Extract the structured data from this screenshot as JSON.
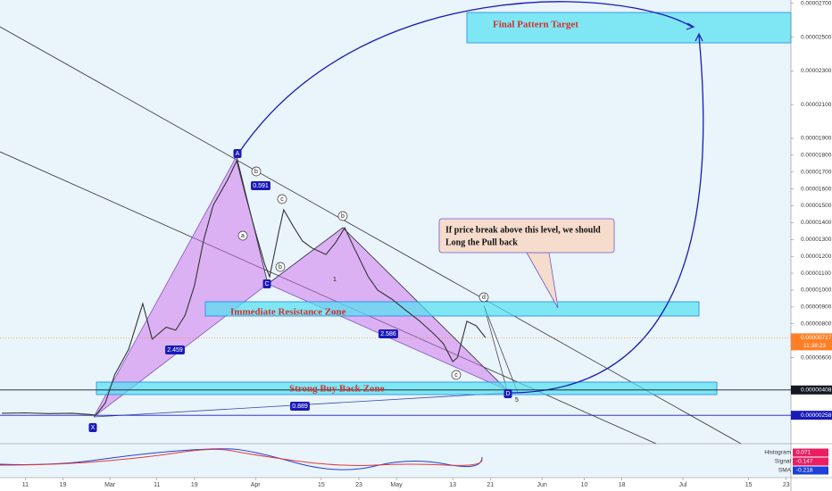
{
  "chart_data": {
    "type": "line",
    "color": "#333333",
    "x": [
      5,
      10,
      15,
      20,
      24,
      25,
      27,
      29,
      32,
      35,
      37,
      40,
      42,
      44,
      46,
      48,
      50,
      53,
      55,
      57,
      59,
      61,
      62,
      64,
      65,
      67,
      69,
      71,
      74,
      76,
      78,
      80,
      83,
      85,
      88,
      91,
      94,
      97,
      99,
      101,
      102,
      104,
      106,
      108
    ],
    "values": [
      2.7e-06,
      2.72e-06,
      2.68e-06,
      2.7e-06,
      2.62e-06,
      2.58e-06,
      3.3e-06,
      4.97e-06,
      6.5e-06,
      9.2e-06,
      7.09e-06,
      7.8e-06,
      7.62e-06,
      8.5e-06,
      1.026e-05,
      1.3e-05,
      1.503e-05,
      1.65e-05,
      1.767e-05,
      1.55e-05,
      1.344e-05,
      1.15e-05,
      1.079e-05,
      1.35e-05,
      1.476e-05,
      1.38e-05,
      1.291e-05,
      1.25e-05,
      1.211e-05,
      1.28e-05,
      1.37e-05,
      1.25e-05,
      1.079e-05,
      1e-05,
      9.47e-06,
      8.8e-06,
      8.15e-06,
      7.4e-06,
      6.82e-06,
      5.76e-06,
      6e-06,
      8.15e-06,
      7.88e-06,
      7.17e-06
    ],
    "xlim": [
      4.6,
      173
    ],
    "xticks": [
      {
        "value": 10,
        "label": "11"
      },
      {
        "value": 18,
        "label": "19"
      },
      {
        "value": 28,
        "label": "Mar"
      },
      {
        "value": 38,
        "label": "11"
      },
      {
        "value": 46,
        "label": "19"
      },
      {
        "value": 59,
        "label": "Apr"
      },
      {
        "value": 73,
        "label": "15"
      },
      {
        "value": 81,
        "label": "23"
      },
      {
        "value": 89,
        "label": "May"
      },
      {
        "value": 101,
        "label": "13"
      },
      {
        "value": 109,
        "label": "21"
      },
      {
        "value": 120,
        "label": "Jun"
      },
      {
        "value": 129,
        "label": "10"
      },
      {
        "value": 137,
        "label": "18"
      },
      {
        "value": 150,
        "label": "Jul"
      },
      {
        "value": 164,
        "label": "15"
      },
      {
        "value": 172,
        "label": "23"
      }
    ],
    "ylim": [
      1e-06,
      2.72e-05
    ],
    "yticks": [
      {
        "value": 2.7e-05,
        "label": "0.00002700"
      },
      {
        "value": 2.5e-05,
        "label": "0.00002500"
      },
      {
        "value": 2.3e-05,
        "label": "0.00002300"
      },
      {
        "value": 2.1e-05,
        "label": "0.00002100"
      },
      {
        "value": 1.9e-05,
        "label": "0.00001900"
      },
      {
        "value": 1.8e-05,
        "label": "0.00001800"
      },
      {
        "value": 1.7e-05,
        "label": "0.00001700"
      },
      {
        "value": 1.6e-05,
        "label": "0.00001600"
      },
      {
        "value": 1.5e-05,
        "label": "0.00001500"
      },
      {
        "value": 1.4e-05,
        "label": "0.00001400"
      },
      {
        "value": 1.3e-05,
        "label": "0.00001300"
      },
      {
        "value": 1.2e-05,
        "label": "0.00001200"
      },
      {
        "value": 1.1e-05,
        "label": "0.00001100"
      },
      {
        "value": 1e-05,
        "label": "0.00001000"
      },
      {
        "value": 9e-06,
        "label": "0.00000900"
      },
      {
        "value": 8e-06,
        "label": "0.00000800"
      },
      {
        "value": 6e-06,
        "label": "0.00000600"
      }
    ],
    "price_lines": [
      {
        "value": 4.08e-06,
        "label": "0.00000408",
        "color": "#131722"
      },
      {
        "value": 2.58e-06,
        "label": "0.00000258",
        "color": "#1a1ab8"
      }
    ],
    "last_price": {
      "value": 7.17e-06,
      "label": "0.00000717",
      "time": "11:38:23",
      "color": "#ff7f27"
    },
    "target_label": "Final Pattern Target",
    "callout": [
      "If price break above this level, we should",
      "Long the Pull back"
    ],
    "zones": [
      "Immediate Resistance Zone",
      "Strong Buy Back Zone"
    ],
    "ratios": [
      "0.591",
      "2.459",
      "2.586",
      "0.889"
    ],
    "points": [
      "X",
      "A",
      "b",
      "a",
      "b",
      "C",
      "c",
      "b",
      "1",
      "c",
      "d",
      "D",
      "5"
    ],
    "indicator": [
      {
        "name": "Histogram",
        "value": 0.071,
        "color": "#e91e63"
      },
      {
        "name": "Signal",
        "value": -0.147,
        "color": "#e91e63"
      },
      {
        "name": "SMA",
        "value": -0.218,
        "color": "#1e3fd8"
      }
    ]
  }
}
